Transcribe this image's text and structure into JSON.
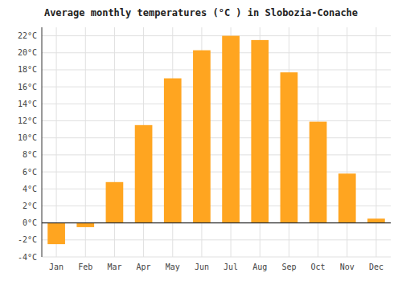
{
  "chart_data": {
    "type": "bar",
    "title": "Average monthly temperatures (°C ) in Slobozia-Conache",
    "categories": [
      "Jan",
      "Feb",
      "Mar",
      "Apr",
      "May",
      "Jun",
      "Jul",
      "Aug",
      "Sep",
      "Oct",
      "Nov",
      "Dec"
    ],
    "values": [
      -2.5,
      -0.5,
      4.8,
      11.5,
      17.0,
      20.3,
      22.0,
      21.5,
      17.7,
      11.9,
      5.8,
      0.5
    ],
    "color": "#FFA520",
    "ylim": [
      -4,
      23
    ],
    "yticks": [
      {
        "value": -4,
        "label": "-4°C"
      },
      {
        "value": -2,
        "label": "-2°C"
      },
      {
        "value": 0,
        "label": "0°C"
      },
      {
        "value": 2,
        "label": "2°C"
      },
      {
        "value": 4,
        "label": "4°C"
      },
      {
        "value": 6,
        "label": "6°C"
      },
      {
        "value": 8,
        "label": "8°C"
      },
      {
        "value": 10,
        "label": "10°C"
      },
      {
        "value": 12,
        "label": "12°C"
      },
      {
        "value": 14,
        "label": "14°C"
      },
      {
        "value": 16,
        "label": "16°C"
      },
      {
        "value": 18,
        "label": "18°C"
      },
      {
        "value": 20,
        "label": "20°C"
      },
      {
        "value": 22,
        "label": "22°C"
      }
    ],
    "grid": true
  }
}
